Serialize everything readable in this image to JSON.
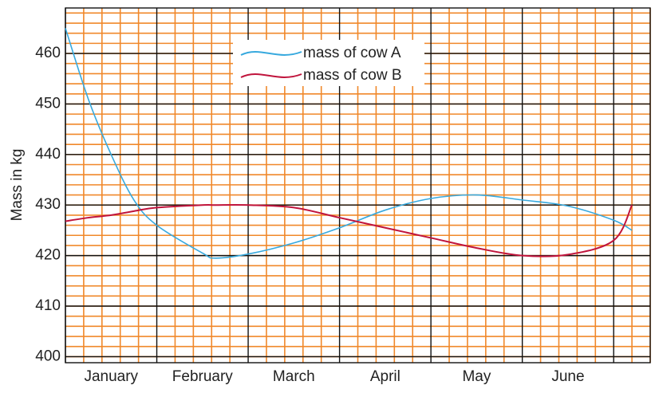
{
  "chart_data": {
    "type": "line",
    "y_label": "Mass in kg",
    "x": [
      0,
      0.25,
      0.5,
      0.75,
      1,
      1.5,
      1.64,
      2,
      2.5,
      3,
      3.5,
      4,
      4.5,
      5,
      5.5,
      6,
      6.2
    ],
    "xlim": [
      0,
      6.4
    ],
    "xticks": [
      {
        "value": 0.5,
        "label": "January"
      },
      {
        "value": 1.5,
        "label": "February"
      },
      {
        "value": 2.5,
        "label": "March"
      },
      {
        "value": 3.5,
        "label": "April"
      },
      {
        "value": 4.5,
        "label": "May"
      },
      {
        "value": 5.5,
        "label": "June"
      }
    ],
    "ylim": [
      398.8,
      469
    ],
    "yticks": [
      400,
      410,
      420,
      430,
      440,
      450,
      460
    ],
    "grid": true,
    "series": [
      {
        "name": "mass of cow A",
        "color": "#37a9de",
        "values": [
          465,
          451,
          440,
          431,
          426,
          420.5,
          419.5,
          420.3,
          422.5,
          425.5,
          429,
          431.3,
          432,
          431,
          429.8,
          427,
          425
        ]
      },
      {
        "name": "mass of cow B",
        "color": "#c0143c",
        "values": [
          426.8,
          427.5,
          428,
          428.8,
          429.5,
          430,
          430,
          430,
          429.5,
          427.5,
          425.5,
          423.5,
          421.5,
          420,
          420.2,
          423,
          430
        ]
      }
    ]
  }
}
